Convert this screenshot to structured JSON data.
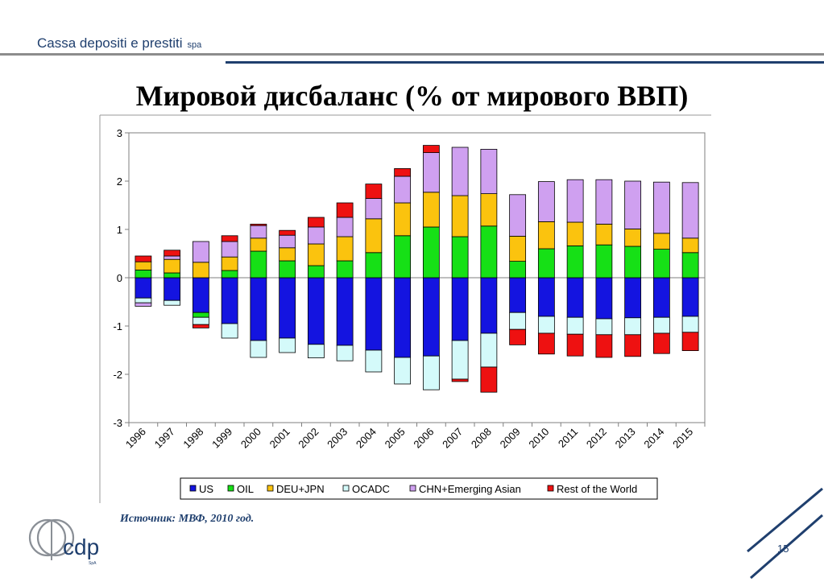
{
  "header": {
    "brand": "Cassa depositi e prestiti",
    "brand_suffix": "spa"
  },
  "slide": {
    "title": "Мировой дисбаланс (% от мирового ВВП)",
    "source": "Источник: МВФ, 2010 год.",
    "page_number": "15",
    "logo_text": "cdp",
    "logo_small": "SpA"
  },
  "colors": {
    "US": "#1414e0",
    "OIL": "#16e016",
    "DEU+JPN": "#fbc30e",
    "OCADC": "#d4fafa",
    "CHN+Emerging Asian": "#cfa0f0",
    "Rest of the World": "#ee1111",
    "brand": "#1f3f6e"
  },
  "chart_data": {
    "type": "bar",
    "stacked": true,
    "categories": [
      "1996",
      "1997",
      "1998",
      "1999",
      "2000",
      "2001",
      "2002",
      "2003",
      "2004",
      "2005",
      "2006",
      "2007",
      "2008",
      "2009",
      "2010",
      "2011",
      "2012",
      "2013",
      "2014",
      "2015"
    ],
    "ylim": [
      -3,
      3
    ],
    "yticks": [
      3,
      2,
      1,
      0,
      -1,
      -2,
      -3
    ],
    "grid": false,
    "legend_position": "bottom",
    "title": "",
    "xlabel": "",
    "ylabel": "",
    "series": [
      {
        "name": "US",
        "values": [
          -0.42,
          -0.47,
          -0.72,
          -0.95,
          -1.3,
          -1.25,
          -1.38,
          -1.4,
          -1.5,
          -1.65,
          -1.62,
          -1.3,
          -1.15,
          -0.72,
          -0.8,
          -0.82,
          -0.85,
          -0.83,
          -0.82,
          -0.8
        ]
      },
      {
        "name": "OIL",
        "values": [
          0.16,
          0.1,
          -0.1,
          0.15,
          0.55,
          0.35,
          0.25,
          0.35,
          0.52,
          0.87,
          1.05,
          0.85,
          1.07,
          0.34,
          0.6,
          0.66,
          0.68,
          0.65,
          0.59,
          0.52
        ]
      },
      {
        "name": "DEU+JPN",
        "values": [
          0.17,
          0.28,
          0.32,
          0.28,
          0.27,
          0.27,
          0.45,
          0.5,
          0.7,
          0.68,
          0.72,
          0.85,
          0.67,
          0.52,
          0.56,
          0.49,
          0.43,
          0.36,
          0.33,
          0.3
        ]
      },
      {
        "name": "OCADC",
        "values": [
          -0.1,
          -0.1,
          -0.15,
          -0.3,
          -0.35,
          -0.3,
          -0.28,
          -0.32,
          -0.45,
          -0.55,
          -0.7,
          -0.8,
          -0.7,
          -0.35,
          -0.35,
          -0.35,
          -0.33,
          -0.35,
          -0.33,
          -0.33
        ]
      },
      {
        "name": "CHN+Emerging Asian",
        "values": [
          -0.07,
          0.07,
          0.43,
          0.32,
          0.26,
          0.26,
          0.35,
          0.4,
          0.42,
          0.55,
          0.82,
          1.0,
          0.92,
          0.86,
          0.83,
          0.88,
          0.92,
          0.99,
          1.06,
          1.15
        ]
      },
      {
        "name": "Rest of the World",
        "values": [
          0.12,
          0.12,
          -0.07,
          0.12,
          0.03,
          0.1,
          0.2,
          0.3,
          0.3,
          0.16,
          0.15,
          -0.05,
          -0.52,
          -0.32,
          -0.43,
          -0.45,
          -0.47,
          -0.45,
          -0.42,
          -0.38
        ]
      }
    ]
  }
}
